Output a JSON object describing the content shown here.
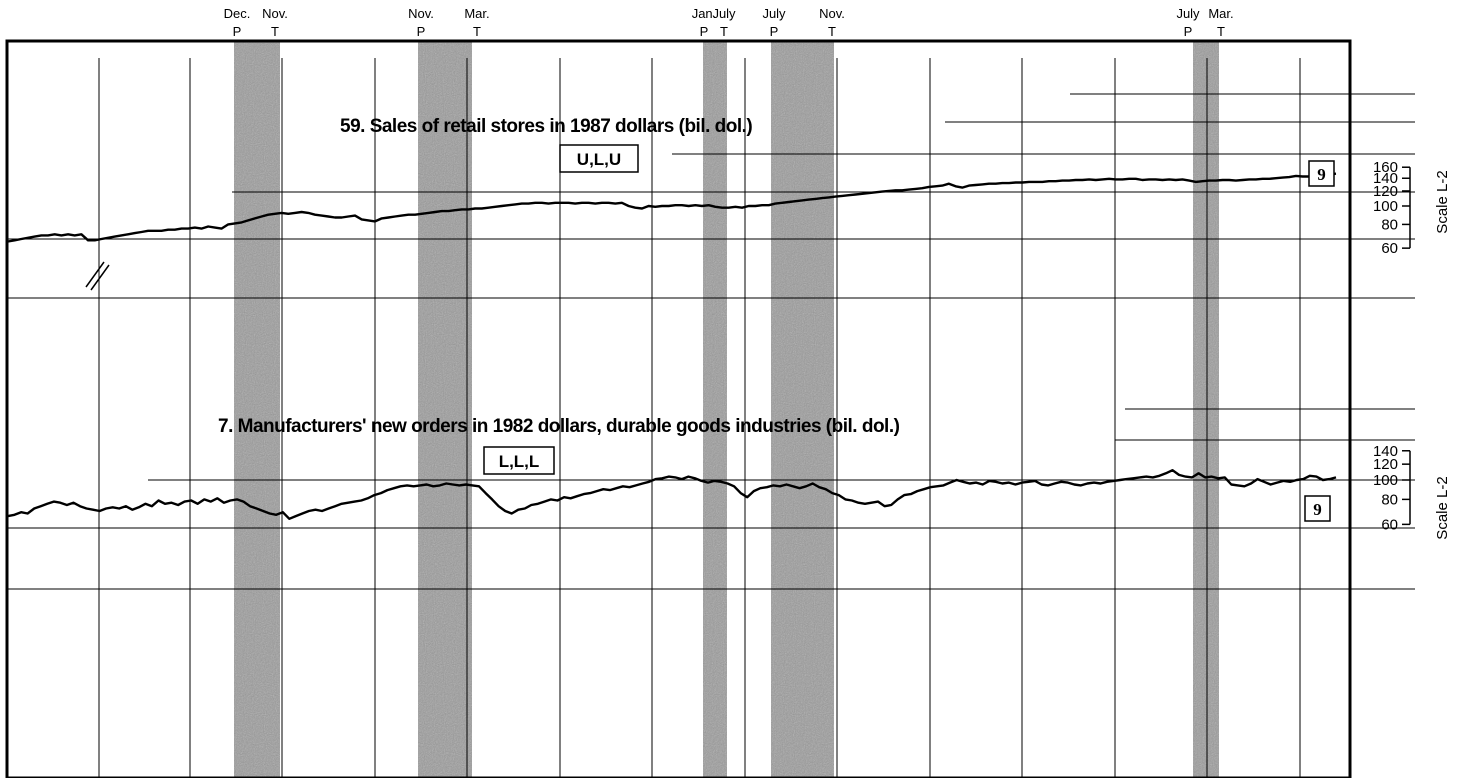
{
  "colors": {
    "ink": "#000000",
    "shade": "#9a9a9a",
    "paper": "#ffffff",
    "grid": "#000000"
  },
  "turning_points": [
    {
      "month": "Dec.",
      "type": "P"
    },
    {
      "month": "Nov.",
      "type": "T"
    },
    {
      "month": "Nov.",
      "type": "P"
    },
    {
      "month": "Mar.",
      "type": "T"
    },
    {
      "month": "Jan.",
      "type": "P"
    },
    {
      "month": "July",
      "type": "T"
    },
    {
      "month": "July",
      "type": "P"
    },
    {
      "month": "Nov.",
      "type": "T"
    },
    {
      "month": "July",
      "type": "P"
    },
    {
      "month": "Mar.",
      "type": "T"
    }
  ],
  "chart_data": [
    {
      "type": "line",
      "title": "59. Sales of retail stores in 1987 dollars (bil. dol.)",
      "code_box": "U,L,U",
      "footnote_box": "9",
      "scale_label": "Scale L-2",
      "y_scale": "log",
      "ylim": [
        55,
        165
      ],
      "yticks": [
        60,
        80,
        100,
        120,
        140,
        160
      ],
      "series": [
        {
          "values": [
            65,
            66,
            67,
            68,
            69,
            70,
            70,
            71,
            70,
            71,
            70,
            71,
            66,
            66,
            67,
            68,
            69,
            70,
            71,
            72,
            73,
            74,
            74,
            74,
            75,
            75,
            76,
            76,
            77,
            76,
            78,
            77,
            76,
            80,
            81,
            82,
            84,
            86,
            88,
            90,
            91,
            92,
            91,
            92,
            93,
            92,
            90,
            89,
            88,
            87,
            87,
            88,
            89,
            85,
            84,
            83,
            86,
            87,
            88,
            89,
            90,
            90,
            91,
            92,
            93,
            94,
            94,
            95,
            96,
            96,
            97,
            97,
            98,
            99,
            100,
            101,
            102,
            103,
            103,
            104,
            104,
            103,
            104,
            104,
            104,
            103,
            104,
            104,
            103,
            104,
            104,
            103,
            104,
            100,
            98,
            97,
            100,
            99,
            100,
            100,
            101,
            101,
            100,
            101,
            100,
            101,
            99,
            98,
            98,
            99,
            98,
            100,
            100,
            101,
            101,
            103,
            104,
            105,
            106,
            107,
            108,
            109,
            110,
            111,
            112,
            113,
            114,
            115,
            116,
            117,
            118,
            119,
            120,
            121,
            121,
            122,
            123,
            124,
            126,
            127,
            128,
            131,
            127,
            125,
            128,
            129,
            130,
            131,
            131,
            132,
            132,
            133,
            133,
            134,
            134,
            134,
            135,
            135,
            136,
            136,
            137,
            137,
            138,
            137,
            138,
            139,
            138,
            138,
            139,
            139,
            137,
            138,
            138,
            137,
            138,
            137,
            138,
            136,
            134,
            135,
            136,
            136,
            137,
            137,
            136,
            137,
            138,
            138,
            139,
            139,
            140,
            141,
            142,
            144,
            143,
            143,
            145,
            146,
            147,
            148
          ]
        }
      ]
    },
    {
      "type": "line",
      "title": "7. Manufacturers' new orders in 1982 dollars, durable goods industries (bil. dol.)",
      "code_box": "L,L,L",
      "footnote_box": "9",
      "scale_label": "Scale L-2",
      "y_scale": "log",
      "ylim": [
        55,
        145
      ],
      "yticks": [
        60,
        80,
        100,
        120,
        140
      ],
      "series": [
        {
          "values": [
            66,
            67,
            69,
            68,
            72,
            74,
            76,
            78,
            77,
            75,
            77,
            74,
            72,
            71,
            70,
            72,
            73,
            72,
            74,
            71,
            73,
            76,
            74,
            79,
            76,
            77,
            75,
            78,
            79,
            76,
            80,
            78,
            81,
            77,
            79,
            80,
            78,
            74,
            72,
            70,
            68,
            67,
            69,
            64,
            66,
            68,
            70,
            71,
            70,
            72,
            74,
            76,
            77,
            78,
            79,
            81,
            84,
            86,
            89,
            91,
            93,
            94,
            93,
            94,
            95,
            93,
            94,
            96,
            95,
            94,
            95,
            94,
            93,
            86,
            80,
            74,
            70,
            68,
            71,
            72,
            75,
            76,
            78,
            80,
            79,
            82,
            81,
            83,
            85,
            86,
            88,
            90,
            89,
            91,
            93,
            92,
            94,
            96,
            98,
            101,
            102,
            104,
            103,
            101,
            104,
            102,
            99,
            97,
            99,
            98,
            96,
            93,
            86,
            82,
            88,
            91,
            92,
            94,
            93,
            95,
            93,
            91,
            93,
            96,
            92,
            90,
            86,
            84,
            80,
            79,
            77,
            76,
            77,
            78,
            74,
            75,
            80,
            84,
            85,
            88,
            90,
            92,
            93,
            94,
            97,
            100,
            98,
            96,
            97,
            95,
            99,
            98,
            96,
            97,
            95,
            97,
            98,
            99,
            95,
            94,
            96,
            98,
            97,
            95,
            94,
            96,
            97,
            96,
            98,
            99,
            100,
            101,
            102,
            103,
            104,
            103,
            105,
            108,
            112,
            106,
            104,
            103,
            108,
            103,
            104,
            102,
            103,
            95,
            94,
            93,
            96,
            101,
            98,
            95,
            97,
            99,
            98,
            100,
            101,
            105,
            104,
            100,
            101,
            103
          ]
        }
      ]
    }
  ]
}
